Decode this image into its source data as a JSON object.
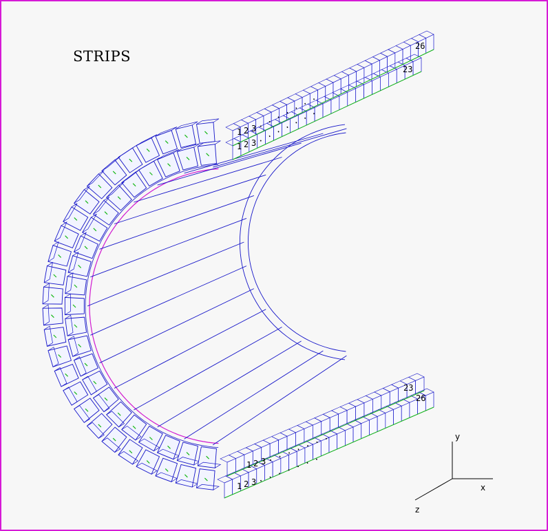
{
  "diagram": {
    "title": "STRIPS",
    "colors": {
      "outline": "#1414c8",
      "inner_ring": "#d01ad0",
      "marker": "#14b814",
      "background": "#f7f7f7",
      "frame": "#d61ad6"
    },
    "strip_labels": {
      "top_outer": {
        "first": "1",
        "second": "2",
        "third": "3",
        "dots": ". . . . . . .",
        "last": "26"
      },
      "top_inner": {
        "first": "1",
        "second": "2",
        "third": "3",
        "dots": ". . . . . . .",
        "last": "23"
      },
      "bottom_inner": {
        "first": "1",
        "second": "2",
        "third": "3",
        "dots": ". . . . . . .",
        "last": "23"
      },
      "bottom_outer": {
        "first": "1",
        "second": "2",
        "third": "3",
        "dots": ". . . . . . .",
        "last": "26"
      }
    },
    "axes": {
      "x": "x",
      "y": "y",
      "z": "z"
    }
  }
}
